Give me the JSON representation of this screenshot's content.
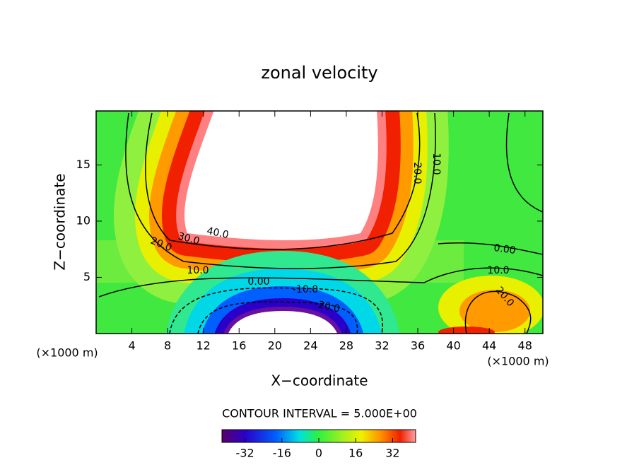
{
  "chart_data": {
    "type": "contour",
    "title": "zonal velocity",
    "x_label": "X−coordinate",
    "y_label": "Z−coordinate",
    "x_unit": "(×1000 m)",
    "y_unit": "(×1000 m)",
    "note": "CONTOUR INTERVAL = 5.000E+00",
    "xlim": [
      0,
      50
    ],
    "xticks": [
      4,
      8,
      12,
      16,
      20,
      24,
      28,
      32,
      36,
      40,
      44,
      48
    ],
    "ylim": [
      0,
      19.8
    ],
    "yticks": [
      5,
      10,
      15
    ],
    "contour_labels": [
      "40.0",
      "30.0",
      "20.0",
      "20.0",
      "10.0",
      "10.0",
      "0.00",
      "-10.0",
      "-20.0",
      "0.00",
      "10.0",
      "20.0"
    ],
    "colorbar": {
      "lim": [
        -42,
        42
      ],
      "ticks": [
        -32,
        -16,
        0,
        16,
        32
      ]
    }
  }
}
